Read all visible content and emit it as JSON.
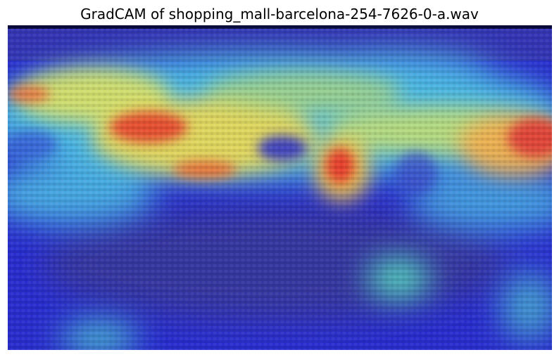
{
  "title": "GradCAM of shopping_mall-barcelona-254-7626-0-a.wav",
  "heatmap": {
    "colormap": "jet",
    "overlay": "GradCAM activation over spectrogram",
    "colors": {
      "low": "#1e1ec8",
      "mid_low": "#3fa9e6",
      "mid": "#5fe0d0",
      "mid_high": "#e8e060",
      "high": "#e83a2a",
      "top_strip": "#0a0a40"
    }
  }
}
